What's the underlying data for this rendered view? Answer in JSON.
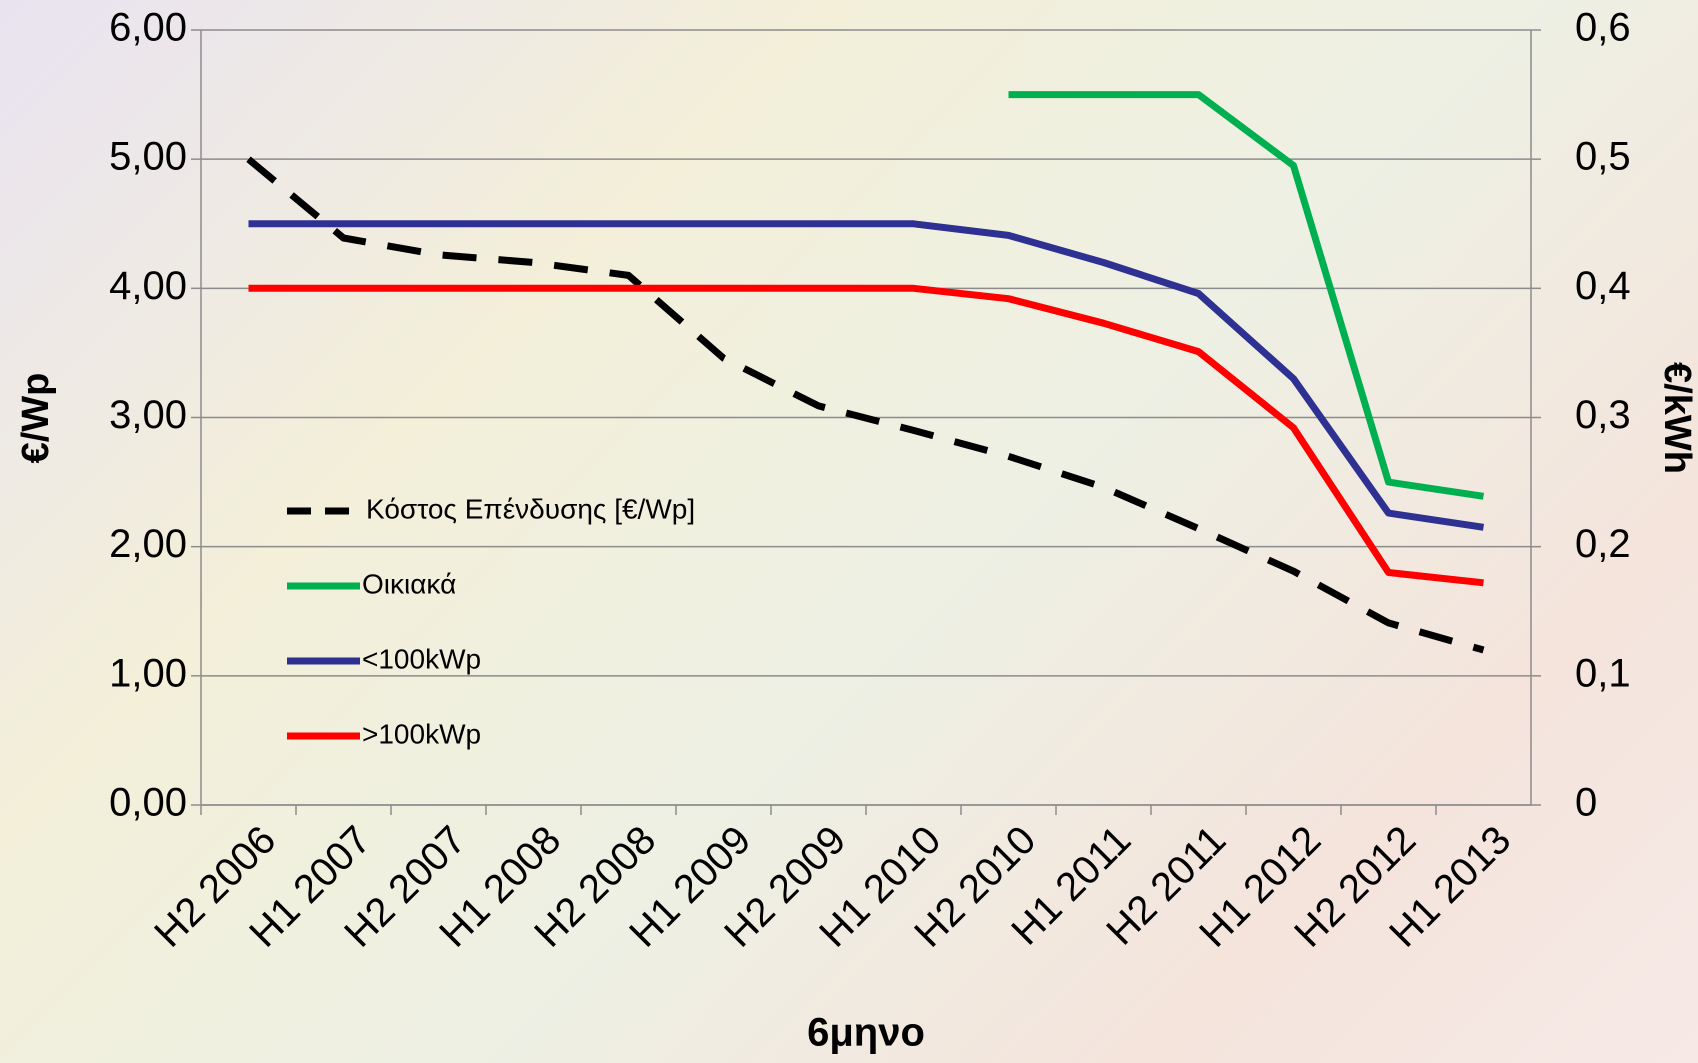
{
  "chart_data": {
    "type": "line",
    "x_label": "6μηνο",
    "y_label": "€/Wp",
    "y2_label": "€/kWh",
    "categories": [
      "H2 2006",
      "H1 2007",
      "H2 2007",
      "H1 2008",
      "H2 2008",
      "H1 2009",
      "H2 2009",
      "H1 2010",
      "H2 2010",
      "H1 2011",
      "H2 2011",
      "H1 2012",
      "H2 2012",
      "H1 2013"
    ],
    "series": [
      {
        "name": "Κόστος Επένδυσης [€/Wp]",
        "color": "#000000",
        "dashed": true,
        "axis": "y",
        "values": [
          5.0,
          4.39,
          4.26,
          4.2,
          4.1,
          3.46,
          3.09,
          2.9,
          2.7,
          2.46,
          2.14,
          1.81,
          1.41,
          1.2
        ]
      },
      {
        "name": "Οικιακά",
        "color": "#00b050",
        "axis": "y2",
        "values": [
          null,
          null,
          null,
          null,
          null,
          null,
          null,
          null,
          0.55,
          0.55,
          0.55,
          0.495,
          0.25,
          0.239
        ]
      },
      {
        "name": "<100kWp",
        "color": "#2e3192",
        "axis": "y2",
        "values": [
          0.45,
          0.45,
          0.45,
          0.45,
          0.45,
          0.45,
          0.45,
          0.45,
          0.441,
          0.42,
          0.396,
          0.33,
          0.226,
          0.215
        ]
      },
      {
        "name": ">100kWp",
        "color": "#ff0000",
        "axis": "y2",
        "values": [
          0.4,
          0.4,
          0.4,
          0.4,
          0.4,
          0.4,
          0.4,
          0.4,
          0.392,
          0.373,
          0.351,
          0.292,
          0.18,
          0.172
        ]
      }
    ],
    "ylim": [
      0,
      6
    ],
    "yticks": [
      {
        "value": 0,
        "label": "0,00"
      },
      {
        "value": 1,
        "label": "1,00"
      },
      {
        "value": 2,
        "label": "2,00"
      },
      {
        "value": 3,
        "label": "3,00"
      },
      {
        "value": 4,
        "label": "4,00"
      },
      {
        "value": 5,
        "label": "5,00"
      },
      {
        "value": 6,
        "label": "6,00"
      }
    ],
    "y2lim": [
      0,
      0.6
    ],
    "y2ticks": [
      0,
      {
        "value": 0.1,
        "label": "0,1"
      },
      {
        "value": 0.2,
        "label": "0,2"
      },
      {
        "value": 0.3,
        "label": "0,3"
      },
      {
        "value": 0.4,
        "label": "0,4"
      },
      {
        "value": 0.5,
        "label": "0,5"
      },
      {
        "value": 0.6,
        "label": "0,6"
      }
    ],
    "grid": true
  }
}
